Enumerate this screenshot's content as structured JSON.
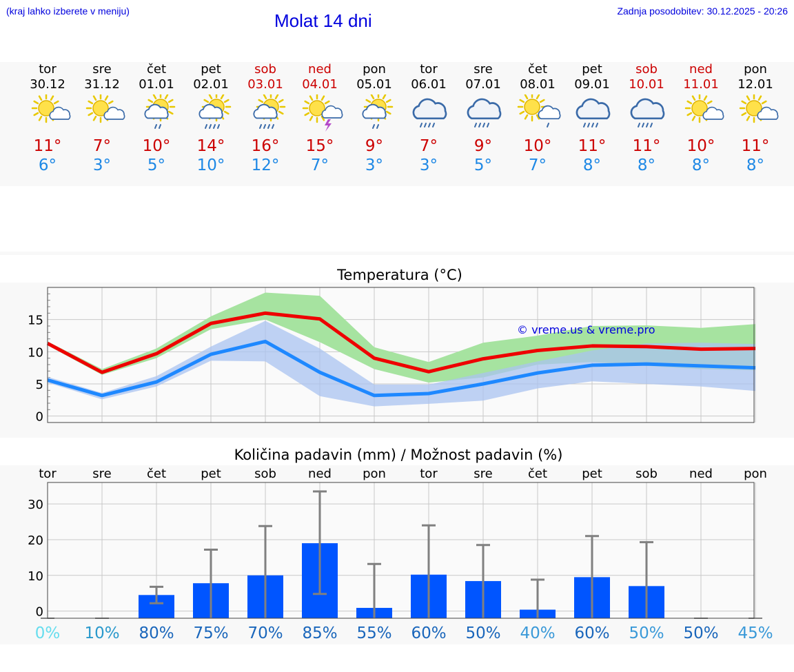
{
  "header": {
    "hint": "(kraj lahko izberete v meniju)",
    "title": "Molat 14 dni",
    "updated": "Zadnja posodobitev: 30.12.2025 - 20:26"
  },
  "days": [
    {
      "name": "tor",
      "date": "30.12",
      "max": "11°",
      "min": "6°",
      "weekend": false,
      "icon": "sun-cloud-icon"
    },
    {
      "name": "sre",
      "date": "31.12",
      "max": "7°",
      "min": "3°",
      "weekend": false,
      "icon": "sun-cloud-icon"
    },
    {
      "name": "čet",
      "date": "01.01",
      "max": "10°",
      "min": "5°",
      "weekend": false,
      "icon": "sun-rain-icon"
    },
    {
      "name": "pet",
      "date": "02.01",
      "max": "14°",
      "min": "10°",
      "weekend": false,
      "icon": "sun-heavy-rain-icon"
    },
    {
      "name": "sob",
      "date": "03.01",
      "max": "16°",
      "min": "12°",
      "weekend": true,
      "icon": "sun-heavy-rain-icon"
    },
    {
      "name": "ned",
      "date": "04.01",
      "max": "15°",
      "min": "7°",
      "weekend": true,
      "icon": "sun-thunder-icon"
    },
    {
      "name": "pon",
      "date": "05.01",
      "max": "9°",
      "min": "3°",
      "weekend": false,
      "icon": "sun-rain-icon"
    },
    {
      "name": "tor",
      "date": "06.01",
      "max": "7°",
      "min": "3°",
      "weekend": false,
      "icon": "cloud-rain-icon"
    },
    {
      "name": "sre",
      "date": "07.01",
      "max": "9°",
      "min": "5°",
      "weekend": false,
      "icon": "cloud-rain-icon"
    },
    {
      "name": "čet",
      "date": "08.01",
      "max": "10°",
      "min": "7°",
      "weekend": false,
      "icon": "sun-light-rain-icon"
    },
    {
      "name": "pet",
      "date": "09.01",
      "max": "11°",
      "min": "8°",
      "weekend": false,
      "icon": "cloud-rain-icon"
    },
    {
      "name": "sob",
      "date": "10.01",
      "max": "11°",
      "min": "8°",
      "weekend": true,
      "icon": "cloud-rain-icon"
    },
    {
      "name": "ned",
      "date": "11.01",
      "max": "10°",
      "min": "8°",
      "weekend": true,
      "icon": "sun-cloud-icon"
    },
    {
      "name": "pon",
      "date": "12.01",
      "max": "11°",
      "min": "8°",
      "weekend": false,
      "icon": "sun-cloud-icon"
    }
  ],
  "colors": {
    "max_line": "#ee0000",
    "min_line": "#1e88ff",
    "max_band": "#a6e3a0",
    "min_band": "#a9c3f0",
    "overlap": "#77bfa8",
    "bar": "#0055ff",
    "errbar": "#808080",
    "grid": "#c8c8c8",
    "weekend_text": "#cc0000"
  },
  "chart_data": [
    {
      "type": "line",
      "title": "Temperatura (°C)",
      "watermark": "© vreme.us & vreme.pro",
      "ylim": [
        -1,
        20
      ],
      "yticks": [
        0,
        5,
        10,
        15
      ],
      "series": [
        {
          "name": "max",
          "values": [
            11.3,
            6.8,
            9.7,
            14.4,
            16.0,
            15.1,
            9.0,
            6.9,
            8.9,
            10.2,
            10.9,
            10.8,
            10.4,
            10.5
          ],
          "band_low": [
            11.0,
            6.4,
            9.0,
            13.5,
            15.0,
            11.5,
            7.3,
            5.2,
            6.0,
            8.0,
            8.4,
            7.8,
            7.3,
            7.1
          ],
          "band_high": [
            11.6,
            7.3,
            10.5,
            15.5,
            19.2,
            18.7,
            10.7,
            8.4,
            11.4,
            12.5,
            14.0,
            14.1,
            13.7,
            14.3
          ]
        },
        {
          "name": "min",
          "values": [
            5.6,
            3.2,
            5.3,
            9.6,
            11.6,
            6.8,
            3.2,
            3.5,
            5.0,
            6.7,
            7.9,
            8.1,
            7.8,
            7.5
          ],
          "band_low": [
            5.2,
            2.6,
            4.6,
            8.6,
            8.5,
            3.1,
            1.5,
            1.9,
            2.4,
            4.3,
            5.4,
            5.0,
            4.6,
            3.9
          ],
          "band_high": [
            6.1,
            3.6,
            6.2,
            10.8,
            14.8,
            10.5,
            4.9,
            4.9,
            6.7,
            8.5,
            10.2,
            11.3,
            11.4,
            11.2
          ]
        }
      ]
    },
    {
      "type": "bar",
      "title": "Količina padavin (mm) / Možnost padavin (%)",
      "categories": [
        "tor",
        "sre",
        "čet",
        "pet",
        "sob",
        "ned",
        "pon",
        "tor",
        "sre",
        "čet",
        "pet",
        "sob",
        "ned",
        "pon"
      ],
      "values": [
        0,
        0,
        4.5,
        7.8,
        10.0,
        19.0,
        0.9,
        10.2,
        8.4,
        0.4,
        9.5,
        7.0,
        0,
        0
      ],
      "err_low": [
        0,
        0,
        2.2,
        0,
        0,
        4.8,
        0,
        0,
        0,
        0,
        0,
        0,
        0,
        0
      ],
      "err_high": [
        0,
        0,
        6.8,
        17.2,
        23.8,
        33.5,
        13.2,
        24.0,
        18.5,
        8.8,
        21.0,
        19.3,
        0,
        0
      ],
      "ylim": [
        -2,
        36
      ],
      "yticks": [
        0,
        10,
        20,
        30
      ],
      "probability": [
        "0%",
        "10%",
        "80%",
        "75%",
        "70%",
        "85%",
        "55%",
        "60%",
        "50%",
        "40%",
        "60%",
        "50%",
        "50%",
        "45%"
      ],
      "probability_colors": [
        "#66ddee",
        "#2a99cc",
        "#1a66bb",
        "#1a66bb",
        "#1a66bb",
        "#1a66bb",
        "#1a66bb",
        "#1a66bb",
        "#1a66bb",
        "#3a99d8",
        "#1a66bb",
        "#3a99d8",
        "#1a66bb",
        "#3a99d8"
      ]
    }
  ]
}
